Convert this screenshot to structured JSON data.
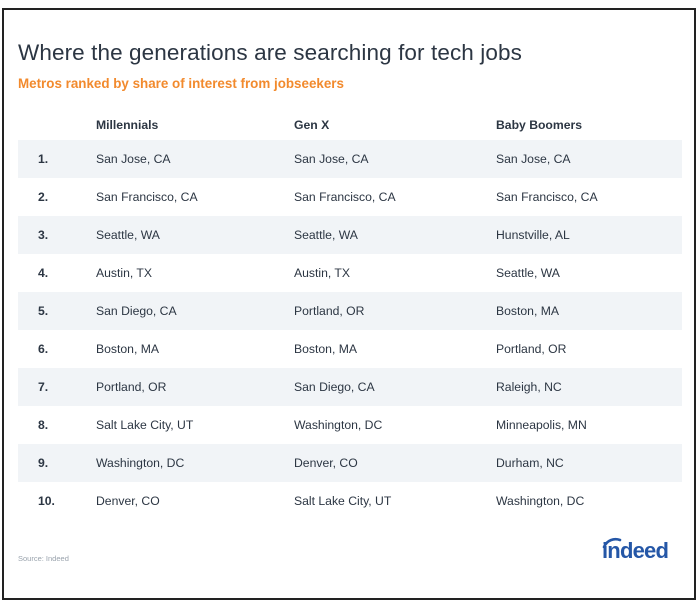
{
  "title": "Where the generations are searching for tech jobs",
  "subtitle": "Metros ranked by share of interest from jobseekers",
  "source": "Source: Indeed",
  "logo_text": "indeed",
  "colors": {
    "title": "#2c3643",
    "subtitle": "#f28a2d",
    "row_shade": "#f1f4f7",
    "logo": "#2557a7"
  },
  "chart_data": {
    "type": "table",
    "columns": [
      "Millennials",
      "Gen X",
      "Baby Boomers"
    ],
    "rows": [
      {
        "rank": "1.",
        "cells": [
          "San Jose, CA",
          "San Jose, CA",
          "San Jose, CA"
        ]
      },
      {
        "rank": "2.",
        "cells": [
          "San Francisco, CA",
          "San Francisco, CA",
          "San Francisco, CA"
        ]
      },
      {
        "rank": "3.",
        "cells": [
          "Seattle, WA",
          "Seattle, WA",
          "Hunstville, AL"
        ]
      },
      {
        "rank": "4.",
        "cells": [
          "Austin, TX",
          "Austin, TX",
          "Seattle, WA"
        ]
      },
      {
        "rank": "5.",
        "cells": [
          "San Diego, CA",
          "Portland, OR",
          "Boston, MA"
        ]
      },
      {
        "rank": "6.",
        "cells": [
          "Boston, MA",
          "Boston, MA",
          "Portland, OR"
        ]
      },
      {
        "rank": "7.",
        "cells": [
          "Portland, OR",
          "San Diego, CA",
          "Raleigh, NC"
        ]
      },
      {
        "rank": "8.",
        "cells": [
          "Salt Lake City, UT",
          "Washington, DC",
          "Minneapolis, MN"
        ]
      },
      {
        "rank": "9.",
        "cells": [
          "Washington, DC",
          "Denver, CO",
          "Durham, NC"
        ]
      },
      {
        "rank": "10.",
        "cells": [
          "Denver, CO",
          "Salt Lake City, UT",
          "Washington, DC"
        ]
      }
    ]
  }
}
